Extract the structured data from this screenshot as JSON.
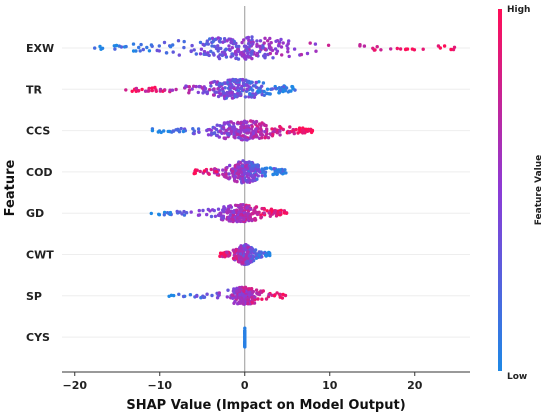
{
  "chart_data": {
    "type": "scatter",
    "subtype": "shap-beeswarm",
    "xlabel": "SHAP Value (Impact on Model Output)",
    "ylabel": "Feature",
    "xlim": [
      -21.5,
      26.5
    ],
    "xticks": [
      -20,
      -10,
      0,
      10,
      20
    ],
    "grid": false,
    "colorbar": {
      "title": "Feature Value",
      "high_label": "High",
      "low_label": "Low",
      "low_color": "#1e88e5",
      "high_color": "#ff0d57"
    },
    "features": [
      {
        "name": "EXW",
        "low_min": -19,
        "high_max": 25,
        "core_min": -8,
        "core_max": 7,
        "spread": 9
      },
      {
        "name": "TR",
        "low_min": -14,
        "high_max": 6,
        "core_min": -6,
        "core_max": 4,
        "spread": 8
      },
      {
        "name": "CCS",
        "low_min": -11,
        "high_max": 8,
        "core_min": -5,
        "core_max": 5,
        "spread": 8
      },
      {
        "name": "COD",
        "low_min": -6,
        "high_max": 5,
        "core_min": -3,
        "core_max": 3,
        "spread": 9
      },
      {
        "name": "GD",
        "low_min": -11,
        "high_max": 5,
        "core_min": -4,
        "core_max": 3,
        "spread": 7
      },
      {
        "name": "CWT",
        "low_min": -3,
        "high_max": 3,
        "core_min": -1.5,
        "core_max": 1.5,
        "spread": 8
      },
      {
        "name": "SP",
        "low_min": -9,
        "high_max": 5,
        "core_min": -1.5,
        "core_max": 1.5,
        "spread": 7
      },
      {
        "name": "CYS",
        "low_min": 0,
        "high_max": 0,
        "core_min": -0.05,
        "core_max": 0.05,
        "spread": 8
      }
    ]
  }
}
